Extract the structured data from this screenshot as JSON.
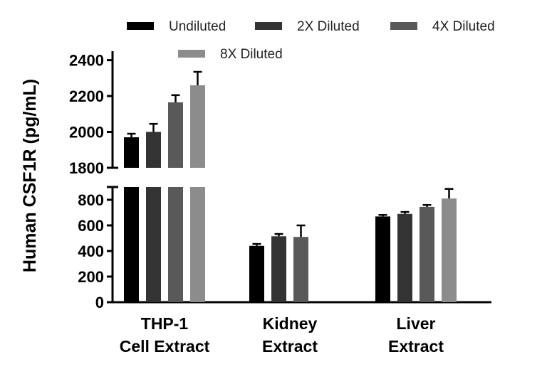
{
  "chart_data": {
    "type": "bar",
    "title": "",
    "xlabel": "",
    "ylabel": "Human CSF1R (pg/mL)",
    "categories": [
      "THP-1\nCell Extract",
      "Kidney\nExtract",
      "Liver\nExtract"
    ],
    "series": [
      {
        "name": "Undiluted",
        "color": "#000000",
        "values": [
          1970,
          440,
          670
        ],
        "errors": [
          20,
          15,
          12
        ]
      },
      {
        "name": "2X Diluted",
        "color": "#333333",
        "values": [
          2000,
          515,
          690
        ],
        "errors": [
          45,
          18,
          15
        ]
      },
      {
        "name": "4X Diluted",
        "color": "#595959",
        "values": [
          2165,
          510,
          745
        ],
        "errors": [
          40,
          90,
          15
        ]
      },
      {
        "name": "8X Diluted",
        "color": "#8c8c8c",
        "values": [
          2260,
          null,
          810
        ],
        "errors": [
          75,
          null,
          75
        ]
      }
    ],
    "y_axis": {
      "broken": true,
      "lower_segment": {
        "ylim": [
          0,
          900
        ],
        "ticks": [
          0,
          200,
          400,
          600,
          800
        ]
      },
      "upper_segment": {
        "ylim": [
          1800,
          2450
        ],
        "ticks": [
          1800,
          2000,
          2200,
          2400
        ]
      }
    },
    "legend": {
      "placement": "top"
    },
    "grid": false
  }
}
